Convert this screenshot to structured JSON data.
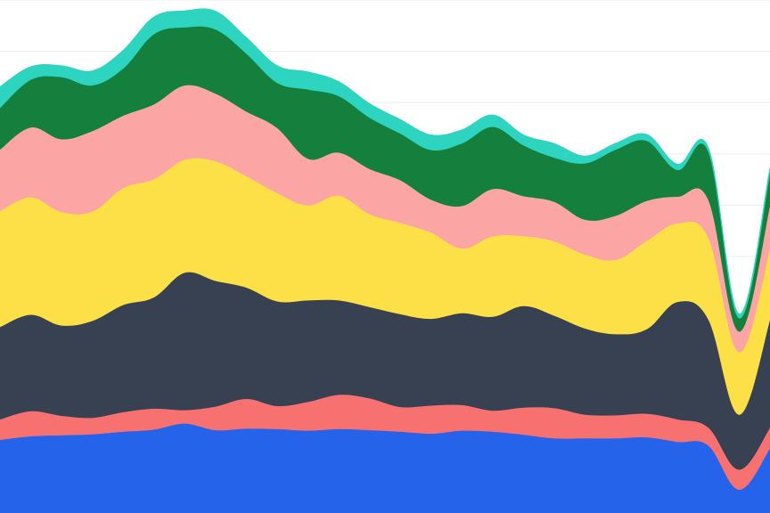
{
  "chart_data": {
    "type": "area",
    "stacked": true,
    "grid": true,
    "legend": "none",
    "x": [
      0,
      4,
      8,
      12,
      16,
      20,
      24,
      28,
      32,
      36,
      40,
      44,
      48,
      52,
      56,
      60,
      64,
      68,
      72,
      76,
      80,
      84,
      88,
      92,
      96,
      100
    ],
    "ylim": [
      0,
      100
    ],
    "series": [
      {
        "color": "#2563eb",
        "values": [
          14.3,
          15.0,
          15.2,
          15.4,
          15.9,
          16.3,
          17.5,
          16.2,
          16.5,
          16.4,
          16.1,
          16.4,
          16.2,
          15.9,
          15.5,
          16.1,
          15.9,
          15.3,
          14.6,
          14.6,
          14.6,
          14.8,
          13.9,
          13.2,
          4.6,
          12.7
        ]
      },
      {
        "color": "#f87171",
        "values": [
          4.0,
          4.9,
          3.8,
          3.2,
          3.8,
          4.1,
          2.6,
          4.6,
          5.8,
          4.5,
          5.6,
          6.7,
          6.2,
          4.8,
          5.5,
          5.0,
          4.1,
          5.3,
          5.9,
          4.6,
          4.5,
          4.6,
          4.4,
          3.5,
          3.9,
          4.0
        ]
      },
      {
        "color": "#374151",
        "values": [
          18.0,
          18.8,
          17.6,
          18.9,
          20.9,
          21.7,
          26.8,
          24.5,
          21.7,
          20.4,
          19.8,
          18.4,
          17.8,
          18.1,
          16.9,
          17.9,
          18.3,
          19.8,
          18.0,
          16.8,
          15.8,
          16.5,
          22.9,
          21.1,
          10.7,
          21.1
        ]
      },
      {
        "color": "#fde047",
        "values": [
          22.6,
          22.9,
          22.1,
          21.3,
          22.8,
          23.0,
          22.0,
          23.3,
          21.7,
          21.1,
          18.5,
          20.4,
          18.1,
          17.8,
          16.8,
          12.6,
          15.7,
          13.6,
          14.5,
          14.4,
          14.5,
          17.2,
          15.3,
          15.9,
          12.2,
          13.8
        ]
      },
      {
        "color": "#fca5a5",
        "values": [
          12.0,
          13.6,
          14.2,
          15.7,
          14.1,
          14.6,
          14.5,
          13.2,
          12.6,
          12.7,
          9.1,
          8.4,
          8.8,
          8.3,
          6.4,
          8.3,
          9.2,
          7.8,
          7.7,
          6.8,
          8.6,
          7.8,
          5.2,
          7.4,
          4.0,
          8.5
        ]
      },
      {
        "color": "#15803d",
        "values": [
          8.1,
          9.3,
          12.1,
          8.9,
          9.2,
          13.7,
          11.3,
          12.5,
          11.3,
          8.8,
          13.5,
          11.0,
          10.0,
          9.1,
          9.7,
          12.2,
          12.1,
          9.9,
          8.6,
          11.0,
          12.9,
          11.7,
          5.2,
          9.4,
          2.6,
          6.3
        ]
      },
      {
        "color": "#2dd4bf",
        "values": [
          4.1,
          2.5,
          2.2,
          2.8,
          3.5,
          3.3,
          3.2,
          3.5,
          3.1,
          3.3,
          3.4,
          2.8,
          2.7,
          2.7,
          2.9,
          2.6,
          2.3,
          2.0,
          2.7,
          1.4,
          1.2,
          1.2,
          1.1,
          0.7,
          0.8,
          0.9
        ]
      }
    ]
  }
}
